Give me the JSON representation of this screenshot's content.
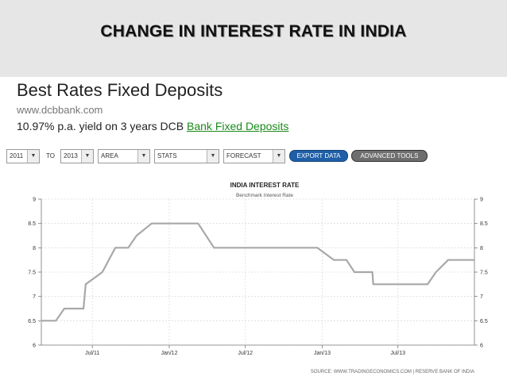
{
  "slide": {
    "title": "CHANGE IN INTEREST RATE IN INDIA"
  },
  "ad": {
    "title": "Best Rates Fixed Deposits",
    "url": "www.dcbbank.com",
    "yield_prefix": "10.97% p.a. yield on 3 years DCB ",
    "yield_link": "Bank Fixed Deposits"
  },
  "toolbar": {
    "from_value": "2011",
    "to_label": "TO",
    "to_value": "2013",
    "area_label": "AREA",
    "stats_label": "STATS",
    "forecast_label": "FORECAST",
    "export_label": "EXPORT DATA",
    "advanced_label": "ADVANCED TOOLS",
    "arrow": "▼"
  },
  "chart_data": {
    "type": "line",
    "title": "INDIA INTEREST RATE",
    "subtitle": "Benchmark Interest Rate",
    "source": "SOURCE: WWW.TRADINGECONOMICS.COM | RESERVE BANK OF INDIA",
    "ylim": [
      6,
      9
    ],
    "y_ticks": [
      "9",
      "8.5",
      "8",
      "7.5",
      "7",
      "6.5",
      "6"
    ],
    "xlim": [
      "2011-03-01",
      "2013-12-31"
    ],
    "x_ticks": [
      {
        "label": "Jul/11",
        "date": "2011-07-01"
      },
      {
        "label": "Jan/12",
        "date": "2012-01-01"
      },
      {
        "label": "Jul/12",
        "date": "2012-07-01"
      },
      {
        "label": "Jan/13",
        "date": "2013-01-01"
      },
      {
        "label": "Jul/13",
        "date": "2013-07-01"
      }
    ],
    "line_color": "#a8a8a8",
    "grid": true,
    "points": [
      {
        "x": "2011-03-01",
        "y": 6.5
      },
      {
        "x": "2011-04-05",
        "y": 6.5
      },
      {
        "x": "2011-04-25",
        "y": 6.75
      },
      {
        "x": "2011-06-10",
        "y": 6.75
      },
      {
        "x": "2011-06-15",
        "y": 7.25
      },
      {
        "x": "2011-07-25",
        "y": 7.5
      },
      {
        "x": "2011-08-25",
        "y": 8.0
      },
      {
        "x": "2011-09-25",
        "y": 8.0
      },
      {
        "x": "2011-10-15",
        "y": 8.25
      },
      {
        "x": "2011-11-20",
        "y": 8.5
      },
      {
        "x": "2012-03-10",
        "y": 8.5
      },
      {
        "x": "2012-04-17",
        "y": 8.0
      },
      {
        "x": "2012-12-20",
        "y": 8.0
      },
      {
        "x": "2013-01-29",
        "y": 7.75
      },
      {
        "x": "2013-02-28",
        "y": 7.75
      },
      {
        "x": "2013-03-19",
        "y": 7.5
      },
      {
        "x": "2013-05-01",
        "y": 7.5
      },
      {
        "x": "2013-05-03",
        "y": 7.25
      },
      {
        "x": "2013-09-10",
        "y": 7.25
      },
      {
        "x": "2013-09-30",
        "y": 7.5
      },
      {
        "x": "2013-10-29",
        "y": 7.75
      },
      {
        "x": "2013-12-31",
        "y": 7.75
      }
    ]
  }
}
